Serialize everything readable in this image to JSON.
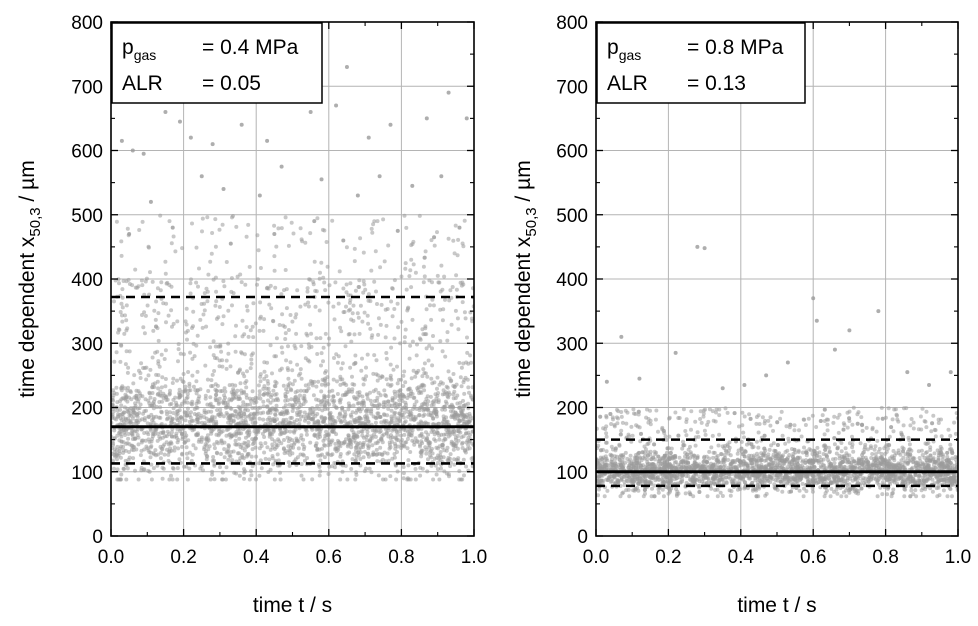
{
  "colors": {
    "points": "#9a9a9a",
    "grid": "#b4b4b4",
    "lines": "#000000",
    "axes": "#000000"
  },
  "chart_data": [
    {
      "type": "scatter",
      "panel": "left",
      "xlabel": "time t / s",
      "ylabel_main": "time dependent x",
      "ylabel_sub": "50,3",
      "ylabel_unit": " / µm",
      "xlim": [
        0.0,
        1.0
      ],
      "ylim": [
        0,
        800
      ],
      "xticks": [
        "0.0",
        "0.2",
        "0.4",
        "0.6",
        "0.8",
        "1.0"
      ],
      "yticks": [
        "0",
        "100",
        "200",
        "300",
        "400",
        "500",
        "600",
        "700",
        "800"
      ],
      "grid": true,
      "legend_placement": "top-left",
      "legend": [
        {
          "label": "p",
          "label_sub": "gas",
          "value": "= 0.4 MPa"
        },
        {
          "label": "ALR",
          "label_sub": "",
          "value": "= 0.05"
        }
      ],
      "reference_lines": [
        {
          "style": "solid",
          "y": 170
        },
        {
          "style": "dashed",
          "y": 372
        },
        {
          "style": "dashed",
          "y": 113
        }
      ],
      "scatter_description": {
        "n_points": 3000,
        "median": 170,
        "bulk_range": [
          100,
          380
        ],
        "outlier_max": 730
      },
      "series": [
        {
          "values": [
            [
              0.03,
              615
            ],
            [
              0.06,
              600
            ],
            [
              0.09,
              595
            ],
            [
              0.15,
              660
            ],
            [
              0.19,
              645
            ],
            [
              0.22,
              620
            ],
            [
              0.28,
              610
            ],
            [
              0.36,
              640
            ],
            [
              0.43,
              615
            ],
            [
              0.51,
              680
            ],
            [
              0.55,
              660
            ],
            [
              0.62,
              670
            ],
            [
              0.65,
              730
            ],
            [
              0.71,
              620
            ],
            [
              0.77,
              640
            ],
            [
              0.87,
              650
            ],
            [
              0.93,
              690
            ],
            [
              0.98,
              650
            ],
            [
              0.11,
              520
            ],
            [
              0.25,
              560
            ],
            [
              0.31,
              540
            ],
            [
              0.41,
              530
            ],
            [
              0.47,
              575
            ],
            [
              0.58,
              555
            ],
            [
              0.68,
              530
            ],
            [
              0.74,
              560
            ],
            [
              0.83,
              545
            ],
            [
              0.91,
              560
            ],
            [
              0.05,
              470
            ],
            [
              0.17,
              480
            ],
            [
              0.33,
              455
            ],
            [
              0.45,
              470
            ],
            [
              0.56,
              490
            ],
            [
              0.64,
              460
            ],
            [
              0.79,
              475
            ],
            [
              0.89,
              465
            ],
            [
              0.96,
              480
            ]
          ]
        }
      ]
    },
    {
      "type": "scatter",
      "panel": "right",
      "xlabel": "time t / s",
      "ylabel_main": "time dependent x",
      "ylabel_sub": "50,3",
      "ylabel_unit": " / µm",
      "xlim": [
        0.0,
        1.0
      ],
      "ylim": [
        0,
        800
      ],
      "xticks": [
        "0.0",
        "0.2",
        "0.4",
        "0.6",
        "0.8",
        "1.0"
      ],
      "yticks": [
        "0",
        "100",
        "200",
        "300",
        "400",
        "500",
        "600",
        "700",
        "800"
      ],
      "grid": true,
      "legend_placement": "top-left",
      "legend": [
        {
          "label": "p",
          "label_sub": "gas",
          "value": "= 0.8 MPa"
        },
        {
          "label": "ALR",
          "label_sub": "",
          "value": "= 0.13"
        }
      ],
      "reference_lines": [
        {
          "style": "solid",
          "y": 100
        },
        {
          "style": "dashed",
          "y": 150
        },
        {
          "style": "dashed",
          "y": 78
        }
      ],
      "scatter_description": {
        "n_points": 3000,
        "median": 100,
        "bulk_range": [
          70,
          180
        ],
        "outlier_max": 450
      },
      "series": [
        {
          "values": [
            [
              0.28,
              450
            ],
            [
              0.3,
              448
            ],
            [
              0.6,
              370
            ],
            [
              0.61,
              335
            ],
            [
              0.78,
              350
            ],
            [
              0.07,
              310
            ],
            [
              0.22,
              285
            ],
            [
              0.41,
              235
            ],
            [
              0.53,
              270
            ],
            [
              0.66,
              290
            ],
            [
              0.7,
              320
            ],
            [
              0.86,
              255
            ],
            [
              0.98,
              255
            ],
            [
              0.03,
              240
            ],
            [
              0.12,
              245
            ],
            [
              0.35,
              230
            ],
            [
              0.47,
              250
            ],
            [
              0.92,
              235
            ]
          ]
        }
      ]
    }
  ]
}
